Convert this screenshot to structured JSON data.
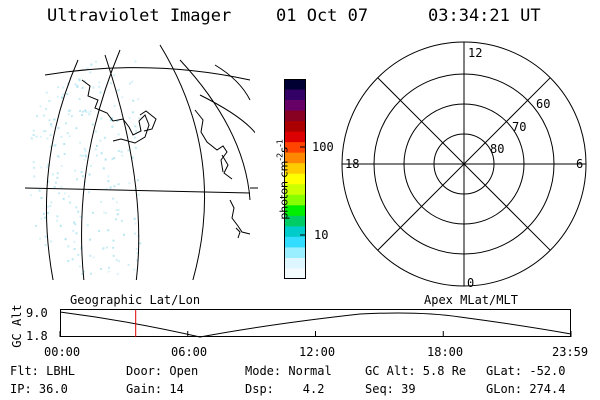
{
  "header": {
    "title": "Ultraviolet Imager",
    "date": "01 Oct 07",
    "time": "03:34:21 UT"
  },
  "colorbar": {
    "label": "photon cm",
    "label_exp1": "-2",
    "label_s": "s",
    "label_exp2": "-1",
    "ticks": [
      "100",
      "10"
    ],
    "log_scale": true,
    "colors": [
      "#000033",
      "#330066",
      "#660066",
      "#880022",
      "#aa0000",
      "#dd0000",
      "#ff4400",
      "#ff8800",
      "#ffcc00",
      "#ffff00",
      "#ccff00",
      "#88ff00",
      "#00ee00",
      "#00cc66",
      "#00cccc",
      "#33ddff",
      "#99eeff",
      "#ddf6ff",
      "#f4fbff"
    ]
  },
  "left_panel": {
    "label": "Geographic Lat/Lon"
  },
  "right_panel": {
    "label": "Apex MLat/MLT",
    "mlt_labels": [
      "12",
      "18",
      "6",
      "0"
    ],
    "lat_labels": [
      "60",
      "70",
      "80"
    ]
  },
  "orbit_plot": {
    "ylabel": "GC Alt",
    "yticks": [
      "9.0",
      "1.8"
    ],
    "xticks": [
      "00:00",
      "06:00",
      "12:00",
      "18:00",
      "23:59"
    ],
    "current_time_fraction": 0.1482,
    "marker_color": "#dd0000"
  },
  "info": {
    "row1": {
      "flt": "Flt: LBHL",
      "door": "Door: Open",
      "mode": "Mode: Normal",
      "gcalt": "GC Alt: 5.8 Re",
      "glat": "GLat: -52.0"
    },
    "row2": {
      "ip": "IP: 36.0",
      "gain": "Gain: 14",
      "dsp": "Dsp:    4.2",
      "seq": "Seq: 39",
      "glon": "GLon: 274.4"
    }
  }
}
